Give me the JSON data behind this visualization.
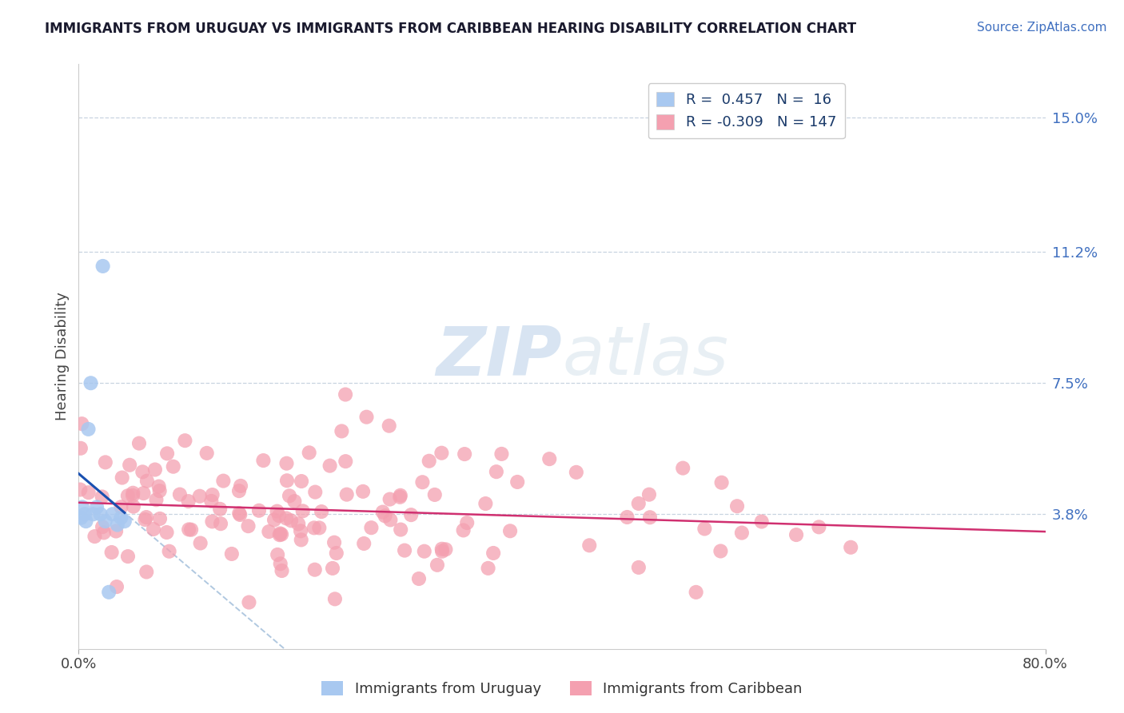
{
  "title": "IMMIGRANTS FROM URUGUAY VS IMMIGRANTS FROM CARIBBEAN HEARING DISABILITY CORRELATION CHART",
  "source": "Source: ZipAtlas.com",
  "ylabel": "Hearing Disability",
  "ytick_labels": [
    "3.8%",
    "7.5%",
    "11.2%",
    "15.0%"
  ],
  "ytick_values": [
    0.038,
    0.075,
    0.112,
    0.15
  ],
  "xlim": [
    0.0,
    0.8
  ],
  "ylim": [
    0.0,
    0.165
  ],
  "r_uruguay": 0.457,
  "n_uruguay": 16,
  "r_caribbean": -0.309,
  "n_caribbean": 147,
  "legend_labels": [
    "Immigrants from Uruguay",
    "Immigrants from Caribbean"
  ],
  "color_uruguay": "#a8c8f0",
  "color_caribbean": "#f4a0b0",
  "line_color_uruguay": "#1a50b0",
  "line_color_caribbean": "#d03070",
  "trend_line_dashed_color": "#b0c8e0",
  "background_color": "#ffffff",
  "grid_color": "#c8d4e0",
  "title_color": "#1a1a2e",
  "source_color": "#4070c0",
  "legend_text_color": "#1a3a6a",
  "watermark_color": "#ccdde8",
  "xtick_positions": [
    0.0,
    0.8
  ],
  "xtick_labels": [
    "0.0%",
    "80.0%"
  ]
}
